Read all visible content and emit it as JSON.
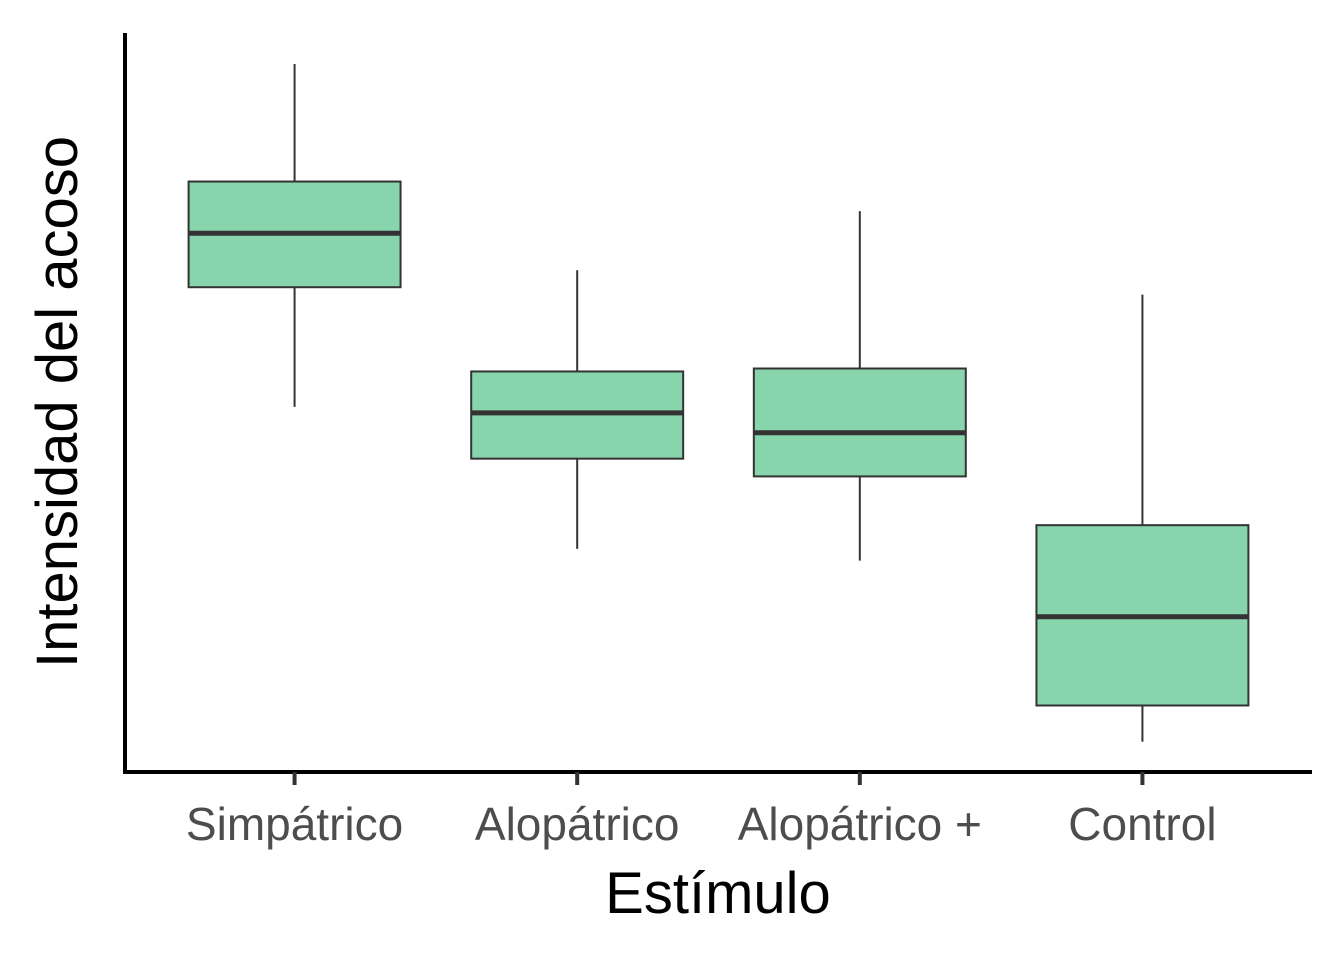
{
  "chart_data": {
    "type": "boxplot",
    "title": "",
    "xlabel": "Estímulo",
    "ylabel": "Intensidad del acoso",
    "ylim": [
      0,
      100
    ],
    "y_ticks_shown": false,
    "grid": false,
    "legend": "none",
    "box_fill": "#88d5ad",
    "box_stroke": "#333333",
    "axis_color": "#000000",
    "categories": [
      "Simpátrico",
      "Alopátrico",
      "Alopátrico +",
      "Control"
    ],
    "boxes": [
      {
        "category": "Simpátrico",
        "whisker_low": 49.4,
        "q1": 65.6,
        "median": 72.9,
        "q3": 79.9,
        "whisker_high": 95.8
      },
      {
        "category": "Alopátrico",
        "whisker_low": 30.2,
        "q1": 42.4,
        "median": 48.6,
        "q3": 54.2,
        "whisker_high": 67.9
      },
      {
        "category": "Alopátrico +",
        "whisker_low": 28.6,
        "q1": 40.0,
        "median": 45.9,
        "q3": 54.6,
        "whisker_high": 75.9
      },
      {
        "category": "Control",
        "whisker_low": 4.1,
        "q1": 9.0,
        "median": 21.0,
        "q3": 33.4,
        "whisker_high": 64.6
      }
    ]
  }
}
